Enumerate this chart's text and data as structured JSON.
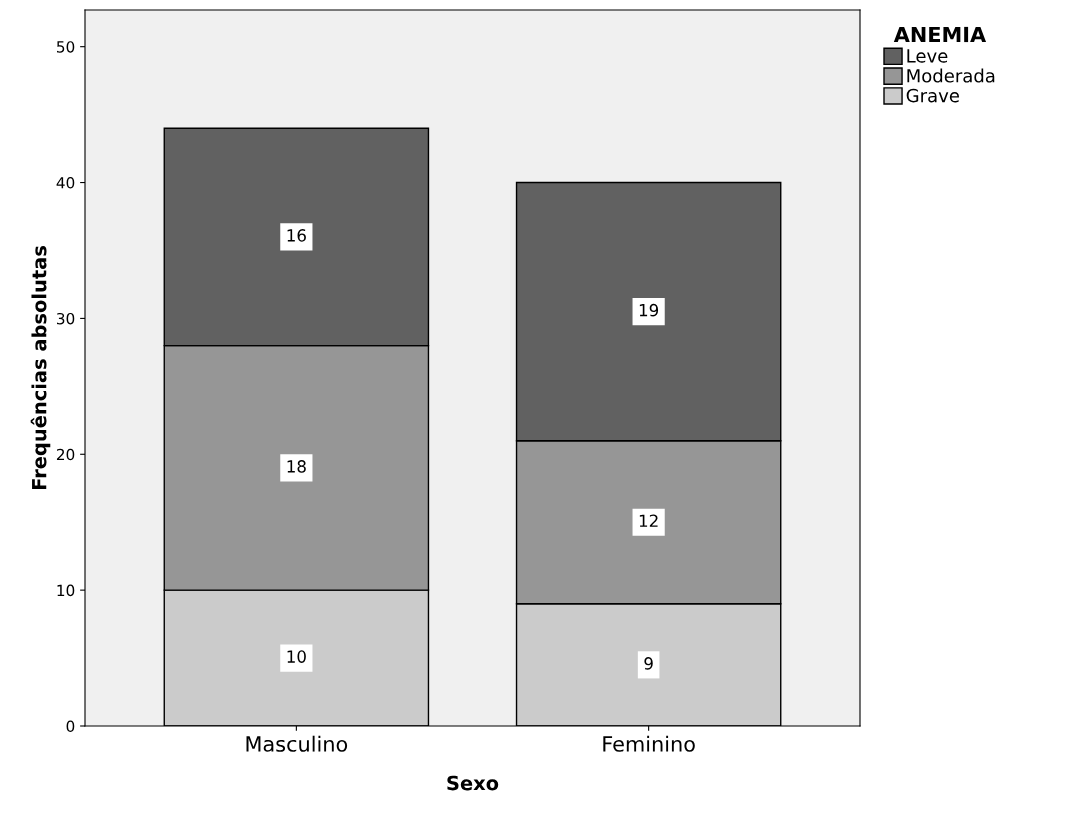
{
  "chart_data": {
    "type": "bar",
    "stacked": true,
    "xlabel": "Sexo",
    "ylabel": "Frequências absolutas",
    "legend_title": "ANEMIA",
    "categories": [
      "Masculino",
      "Feminino"
    ],
    "series": [
      {
        "name": "Grave",
        "color": "#cbcbcb",
        "values": [
          10,
          9
        ]
      },
      {
        "name": "Moderada",
        "color": "#969696",
        "values": [
          18,
          12
        ]
      },
      {
        "name": "Leve",
        "color": "#616161",
        "values": [
          16,
          19
        ]
      }
    ],
    "data_labels": true,
    "ylim": [
      0,
      52.7
    ],
    "yticks": [
      0,
      10,
      20,
      30,
      40,
      50
    ],
    "grid": false,
    "legend": "top right"
  }
}
